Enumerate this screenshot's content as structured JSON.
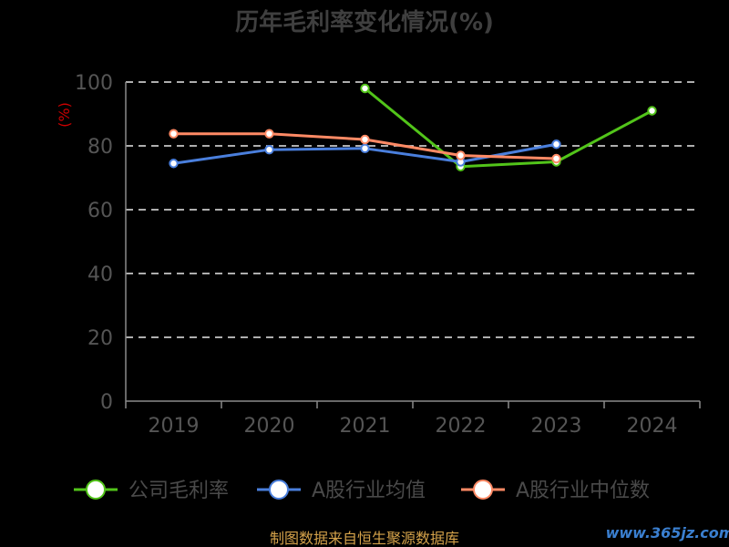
{
  "chart_data": {
    "type": "line",
    "title": "历年毛利率变化情况(%)",
    "ylabel": "(%)",
    "categories": [
      "2019",
      "2020",
      "2021",
      "2022",
      "2023",
      "2024"
    ],
    "ylim": [
      0,
      100
    ],
    "yticks": [
      0,
      20,
      40,
      60,
      80,
      100
    ],
    "grid": true,
    "legend_position": "bottom",
    "series": [
      {
        "name": "公司毛利率",
        "color": "#52c41a",
        "values": [
          null,
          null,
          98,
          73.5,
          75,
          91
        ]
      },
      {
        "name": "A股行业均值",
        "color": "#4a7fdd",
        "values": [
          74.5,
          78.8,
          79.2,
          75,
          80.5,
          null
        ]
      },
      {
        "name": "A股行业中位数",
        "color": "#ff8a65",
        "values": [
          83.8,
          83.8,
          82,
          77,
          76,
          null
        ]
      }
    ]
  },
  "footer": {
    "source": "制图数据来自恒生聚源数据库",
    "watermark": "www.365jz.com"
  }
}
